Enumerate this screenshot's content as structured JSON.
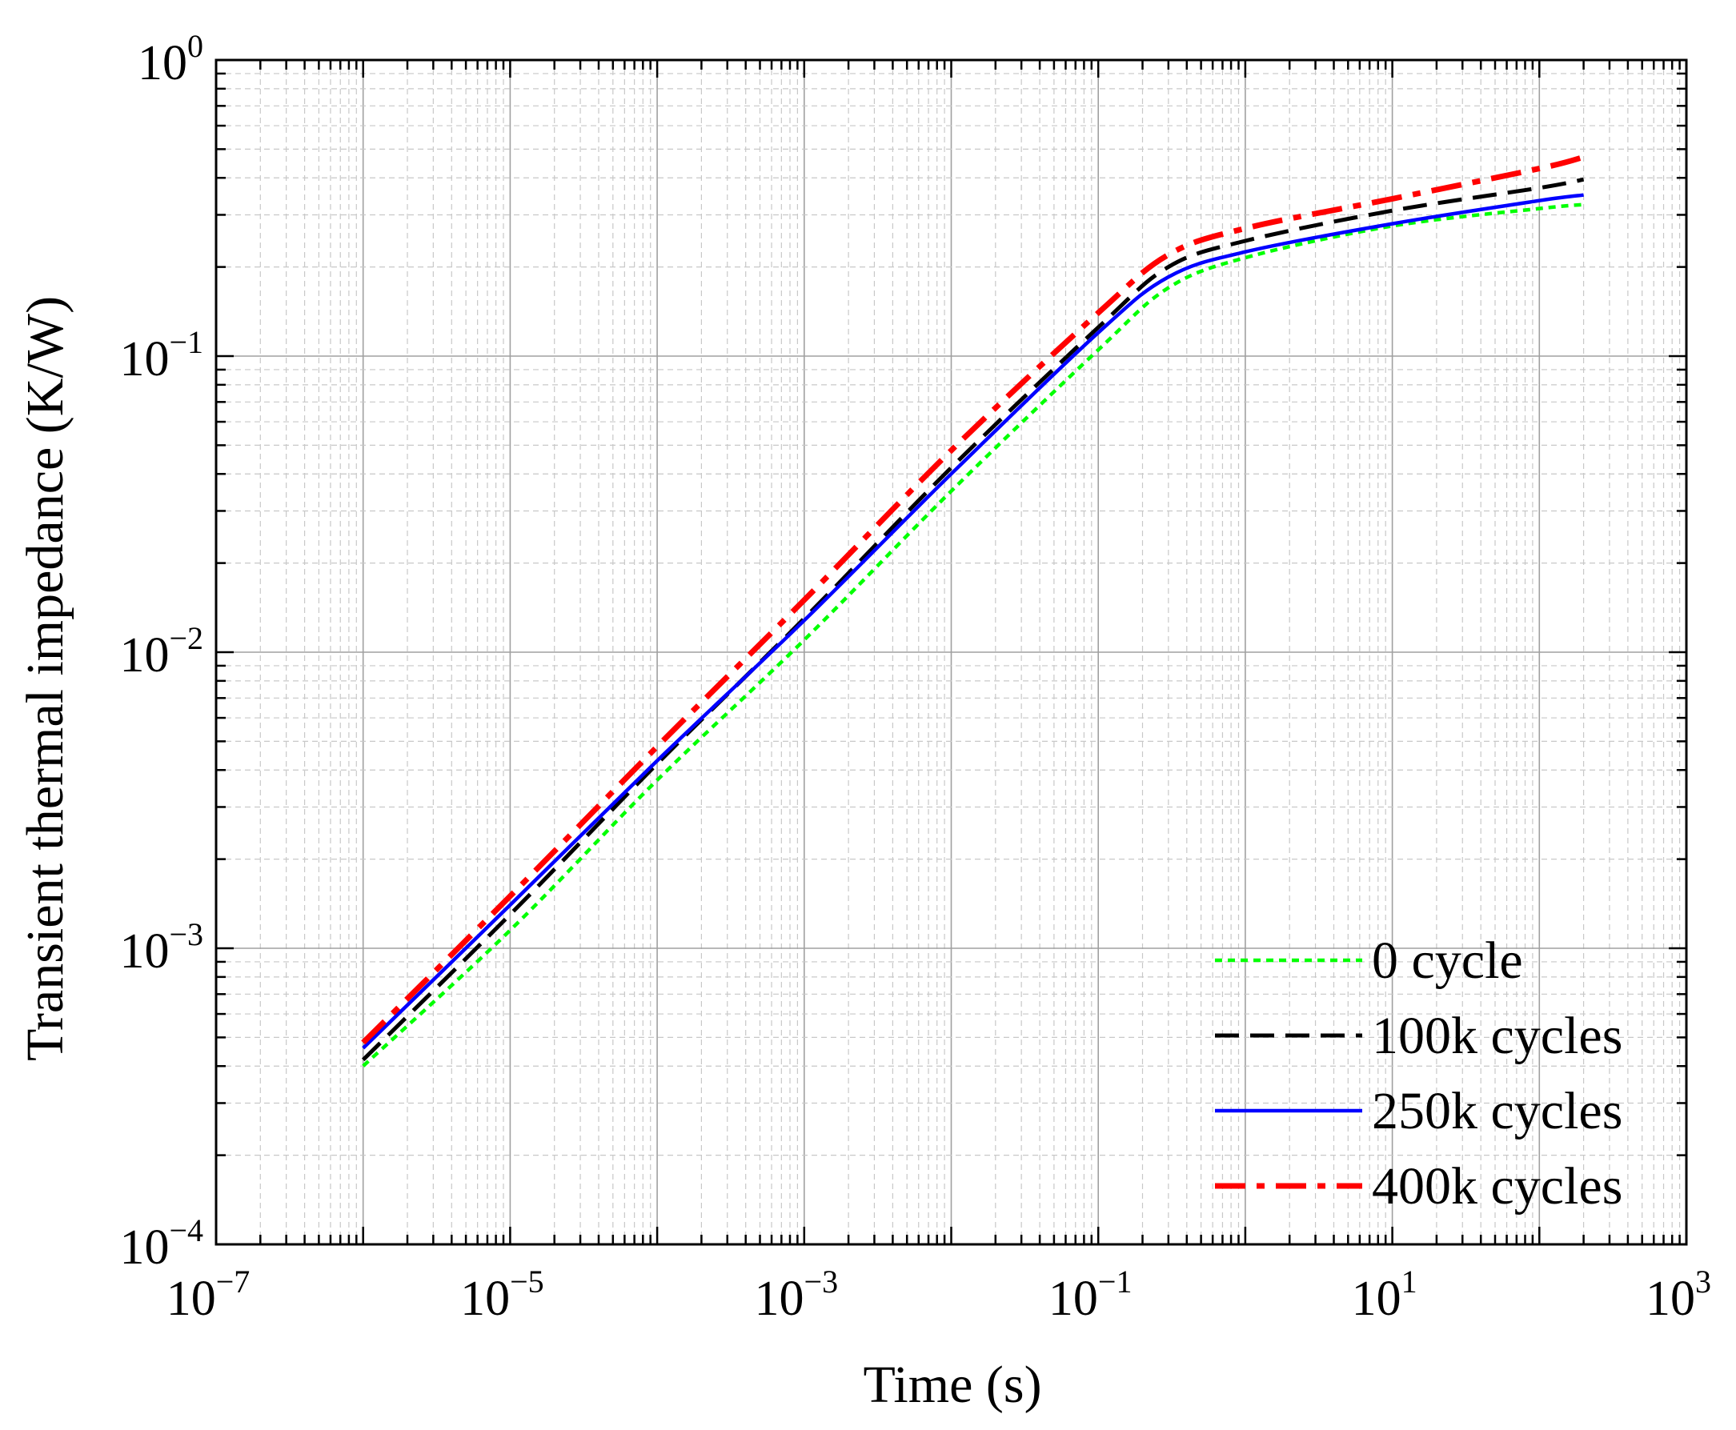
{
  "chart_data": {
    "type": "line",
    "title": "",
    "xlabel": "Time (s)",
    "ylabel": "Transient thermal impedance (K/W)",
    "xscale": "log",
    "yscale": "log",
    "xlim": [
      1e-07,
      1000
    ],
    "ylim": [
      0.0001,
      1
    ],
    "grid": true,
    "legend_position": "bottom-right",
    "x_ticks": [
      {
        "value": 1e-07,
        "base": "10",
        "exp": "−7"
      },
      {
        "value": 1e-05,
        "base": "10",
        "exp": "−5"
      },
      {
        "value": 0.001,
        "base": "10",
        "exp": "−3"
      },
      {
        "value": 0.1,
        "base": "10",
        "exp": "−1"
      },
      {
        "value": 10,
        "base": "10",
        "exp": "1"
      },
      {
        "value": 1000,
        "base": "10",
        "exp": "3"
      }
    ],
    "y_ticks": [
      {
        "value": 0.0001,
        "base": "10",
        "exp": "−4"
      },
      {
        "value": 0.001,
        "base": "10",
        "exp": "−3"
      },
      {
        "value": 0.01,
        "base": "10",
        "exp": "−2"
      },
      {
        "value": 0.1,
        "base": "10",
        "exp": "−1"
      },
      {
        "value": 1,
        "base": "10",
        "exp": "0"
      }
    ],
    "series": [
      {
        "name": "0 cycle",
        "color": "#00ff00",
        "dash": "dotted",
        "x": [
          1e-06,
          1e-05,
          0.0001,
          0.001,
          0.01,
          0.1,
          0.3,
          1,
          10,
          100,
          200
        ],
        "y": [
          0.0004,
          0.00115,
          0.0037,
          0.011,
          0.035,
          0.105,
          0.17,
          0.215,
          0.275,
          0.315,
          0.325
        ]
      },
      {
        "name": "100k cycles",
        "color": "#000000",
        "dash": "dashed",
        "x": [
          1e-06,
          1e-05,
          0.0001,
          0.001,
          0.01,
          0.1,
          0.3,
          1,
          10,
          100,
          200
        ],
        "y": [
          0.00042,
          0.0013,
          0.0042,
          0.013,
          0.042,
          0.125,
          0.2,
          0.245,
          0.31,
          0.37,
          0.395
        ]
      },
      {
        "name": "250k cycles",
        "color": "#0000ff",
        "dash": "solid",
        "x": [
          1e-06,
          1e-05,
          0.0001,
          0.001,
          0.01,
          0.1,
          0.3,
          1,
          10,
          100,
          200
        ],
        "y": [
          0.00046,
          0.0014,
          0.0043,
          0.0128,
          0.04,
          0.12,
          0.185,
          0.225,
          0.28,
          0.335,
          0.35
        ]
      },
      {
        "name": "400k cycles",
        "color": "#ff0000",
        "dash": "dashdot",
        "x": [
          1e-06,
          1e-05,
          0.0001,
          0.001,
          0.01,
          0.1,
          0.3,
          1,
          10,
          100,
          200
        ],
        "y": [
          0.00048,
          0.0015,
          0.0048,
          0.015,
          0.048,
          0.14,
          0.22,
          0.27,
          0.34,
          0.43,
          0.47
        ]
      }
    ]
  }
}
